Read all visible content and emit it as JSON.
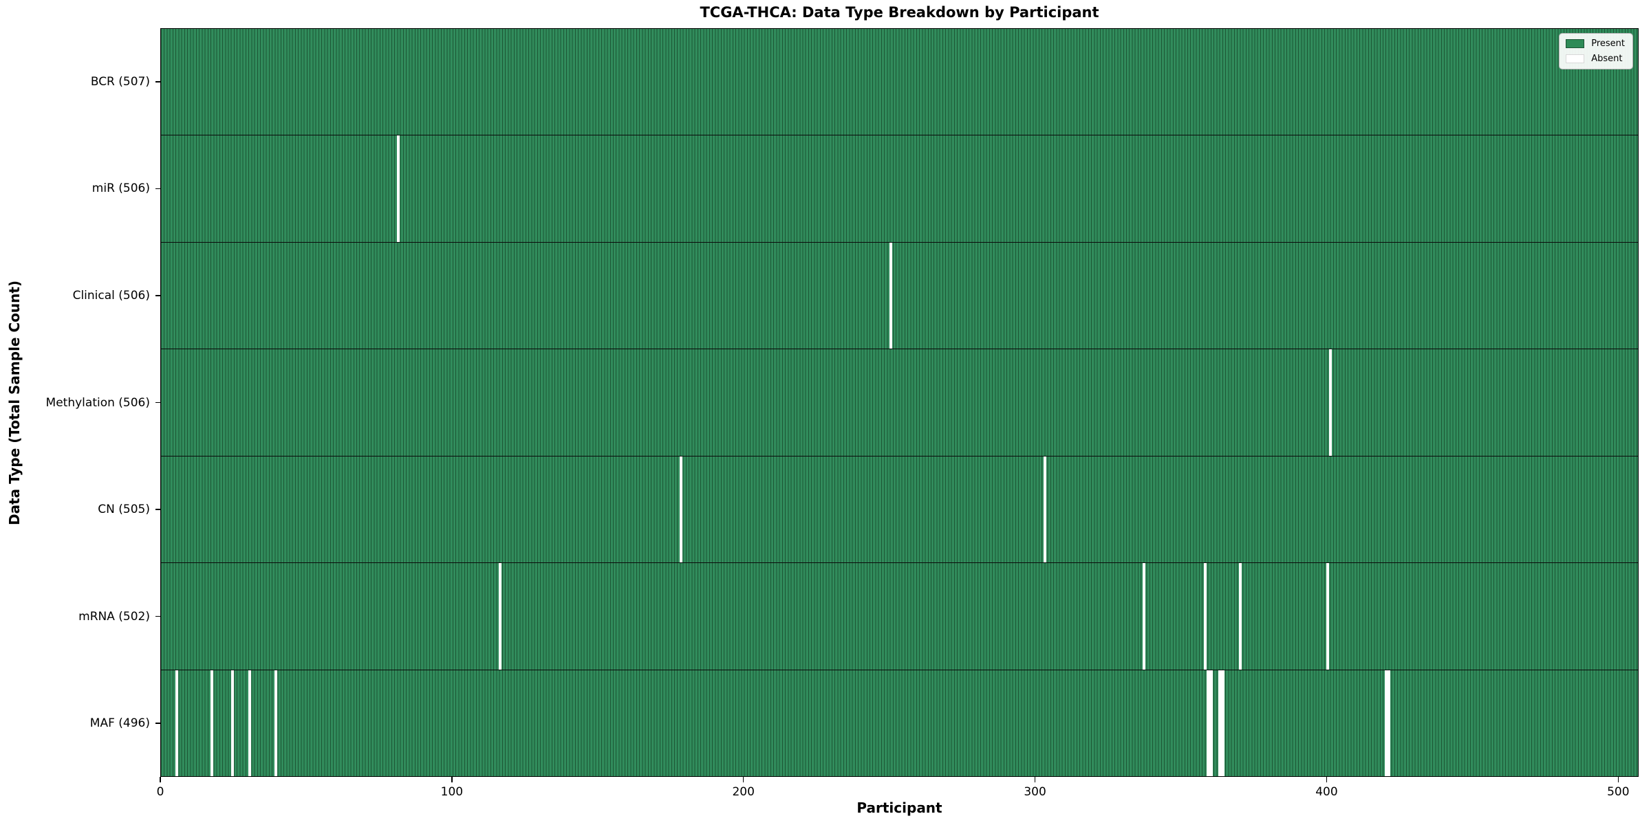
{
  "chart_data": {
    "type": "heatmap",
    "title": "TCGA-THCA: Data Type Breakdown by Participant",
    "xlabel": "Participant",
    "ylabel": "Data Type (Total Sample Count)",
    "x_ticks": [
      0,
      100,
      200,
      300,
      400,
      500
    ],
    "x_axis_max": 507,
    "total_participants": 507,
    "grid": false,
    "legend": {
      "position": "upper-right",
      "entries": [
        {
          "label": "Present",
          "color": "#2e8b57"
        },
        {
          "label": "Absent",
          "color": "#ffffff"
        }
      ]
    },
    "colors": {
      "present_fill": "#318c5c",
      "present_edge": "#1c5634",
      "absent_fill": "#ffffff",
      "row_separator": "#0a0a0a"
    },
    "rows": [
      {
        "label": "BCR (507)",
        "data_type": "BCR",
        "present_count": 507,
        "absent_participants": []
      },
      {
        "label": "miR (506)",
        "data_type": "miR",
        "present_count": 506,
        "absent_participants": [
          81
        ]
      },
      {
        "label": "Clinical (506)",
        "data_type": "Clinical",
        "present_count": 506,
        "absent_participants": [
          250
        ]
      },
      {
        "label": "Methylation (506)",
        "data_type": "Methylation",
        "present_count": 506,
        "absent_participants": [
          401
        ]
      },
      {
        "label": "CN (505)",
        "data_type": "CN",
        "present_count": 505,
        "absent_participants": [
          178,
          303
        ]
      },
      {
        "label": "mRNA (502)",
        "data_type": "mRNA",
        "present_count": 502,
        "absent_participants": [
          116,
          337,
          358,
          370,
          400
        ]
      },
      {
        "label": "MAF (496)",
        "data_type": "MAF",
        "present_count": 496,
        "absent_participants": [
          5,
          17,
          24,
          30,
          39,
          359,
          360,
          363,
          364,
          420,
          421
        ]
      }
    ]
  }
}
